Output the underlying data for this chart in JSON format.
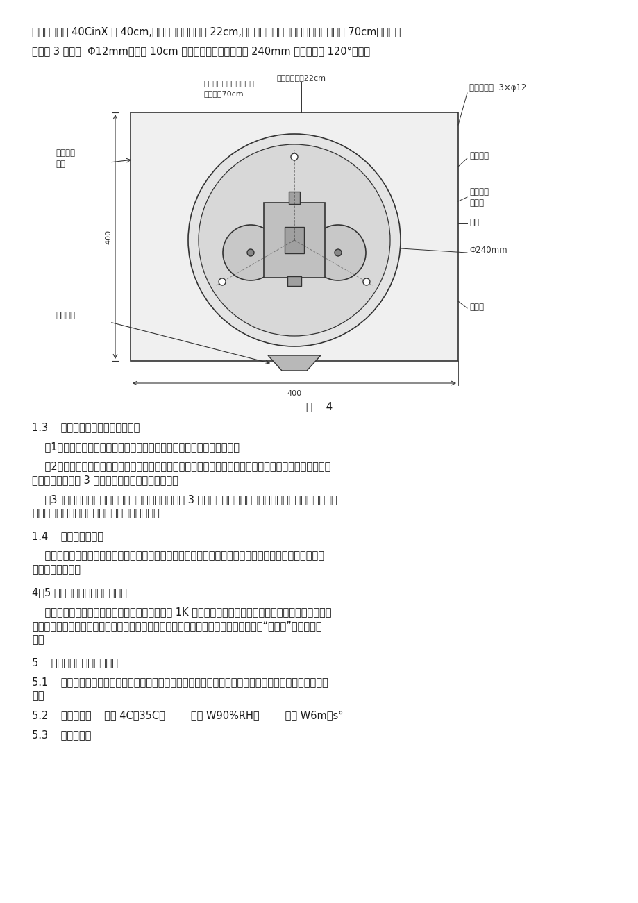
{
  "bg_color": "#ffffff",
  "page_width": 9.2,
  "page_height": 13.01,
  "text_color": "#1a1a1a",
  "diagram_color": "#333333",
  "paragraph1": "的尺寸为：长 40CinX 宽 40cm,露出地平面高度约为 22cm,安装后仪器的承雨口距地平面的高度为 70cm；在水泥",
  "paragraph2": "台上打 3 个直径  Φ12mm、深约 10cm 的安装孔，安装孔位于小 240mm 的圆周上呆 120°均分。",
  "fig_caption": "图    4",
  "section_13_title": "1.3    安装固定仪器、调整机芯水平",
  "section_13_p1": "    （1）拧下三个外筒固定螺钉并垂直向上提拉外筒使其与底座组件分离。",
  "section_13_p2_line1": "    （2）安装仪器底座：将膨胀螺栓分别置于安装孔内，并用坠圈及地脚螺母分别锁紧膨胀螺栓，然后将仪器",
  "section_13_p2_line2": "底座支脚板安装在 3 个地脚膨胀螺栓的锁紧螺母上。",
  "section_13_p3_line1": "    （3）调整机芯水平、锁紧固定仪器底座：分别调整 3 个调高螺母的高度直至水平泡的气泡居于中心位置，",
  "section_13_p3_line2": "然后用穹顶锁紧螺母分别锁紧仪器的三角支板。",
  "section_14_title": "1.4    安装传输信号线",
  "section_14_p1_line1": "    将信号传输线从机房引出穿过防护管引至水泥台，再穿过底座过线孔与输出信号端子相连接，并锁紧电缆",
  "section_14_p1_line2": "锁紧头的锁紧头。",
  "section_45_title": "4．5 检查仪器输出信号是否正常",
  "section_45_p1_line1": "    检查仪器器输出信号是否正常：将万用电表置于 1K 档，用表笔接触仪器支架后面的输出端子（或者用计",
  "section_45_p1_line2": "数器连接输出端子），然后用手指轻轻拨动计数翻斗使之翻动，并观察二个干簧的输出“通、断”信号是否正",
  "section_45_p1_line3": "常。",
  "section_5_title": "5    仪器系统误差的现场校准",
  "section_51_title": "5.1    范围：新建站点、日常维修维护、定期巡检、重新启用均应对翻斗式雨量传感器的系统误差作现场校",
  "section_51_p1": "准。",
  "section_52_title": "5.2    环境条件：    气温 4C～35C；        湿度 W90%RH；        风速 W6m／s°",
  "section_53_title": "5.3    现场准备："
}
